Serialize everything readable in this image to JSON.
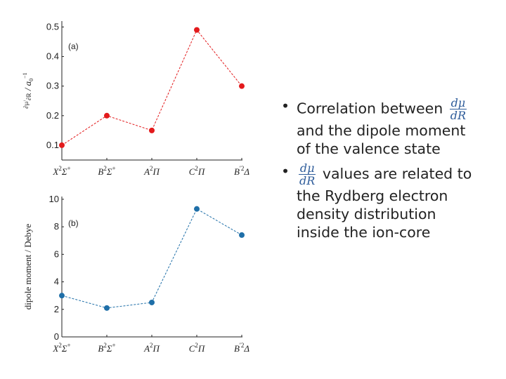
{
  "chart_data": [
    {
      "type": "line",
      "panel_label": "(a)",
      "ylabel_parts": {
        "num": "∂μ",
        "den": "∂R",
        "rest": " / a",
        "exp": "−1",
        "sub": "0"
      },
      "categories": [
        "X²Σ⁺",
        "B²Σ⁺",
        "A²Π",
        "C²Π",
        "B′²Δ"
      ],
      "series": [
        {
          "values": [
            0.1,
            0.2,
            0.15,
            0.49,
            0.3
          ],
          "color": "#e31a1c"
        }
      ],
      "ylim": [
        0.05,
        0.52
      ],
      "yticks": [
        "0.1",
        "0.2",
        "0.3",
        "0.4",
        "0.5"
      ],
      "grid": false
    },
    {
      "type": "line",
      "panel_label": "(b)",
      "ylabel": "dipole moment  / Debye",
      "categories": [
        "X²Σ⁺",
        "B²Σ⁺",
        "A²Π",
        "C²Π",
        "B′²Δ"
      ],
      "series": [
        {
          "values": [
            3.0,
            2.1,
            2.5,
            9.3,
            7.4
          ],
          "color": "#1f6fa8"
        }
      ],
      "ylim": [
        0,
        10.2
      ],
      "yticks": [
        "0",
        "2",
        "4",
        "6",
        "8",
        "10"
      ],
      "grid": false
    }
  ],
  "state_labels": [
    {
      "letter": "X",
      "sup": "2",
      "term": "Σ",
      "tsup": "+"
    },
    {
      "letter": "B",
      "sup": "2",
      "term": "Σ",
      "tsup": "+"
    },
    {
      "letter": "A",
      "sup": "2",
      "term": "Π",
      "tsup": ""
    },
    {
      "letter": "C",
      "sup": "2",
      "term": "Π",
      "tsup": ""
    },
    {
      "letter": "B",
      "sup": "′2",
      "term": "Δ",
      "tsup": ""
    }
  ],
  "bullets": {
    "b1_text": "Correlation between",
    "b1_line2": "and the dipole moment",
    "b1_line3": "of the valence state",
    "b2_text": "values are related to",
    "b2_line2": "the Rydberg electron",
    "b2_line3": "density distribution",
    "b2_line4": "inside the ion-core",
    "frac_num": "dμ",
    "frac_den": "dR",
    "bullet_char": "•"
  }
}
